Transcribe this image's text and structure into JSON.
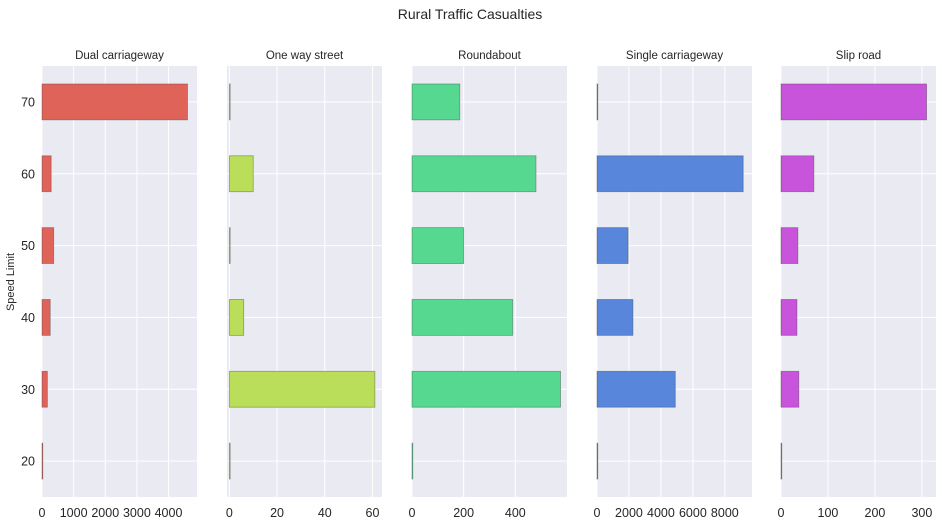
{
  "chart_data": {
    "type": "bar",
    "orientation": "horizontal",
    "title": "Rural Traffic Casualties",
    "ylabel": "Speed Limit",
    "categories": [
      "20",
      "30",
      "40",
      "50",
      "60",
      "70"
    ],
    "panels": [
      {
        "name": "Dual carriageway",
        "color": "#e0635a",
        "values": [
          8,
          170,
          260,
          370,
          290,
          4600
        ],
        "xlim": [
          0,
          4900
        ],
        "xticks": [
          0,
          1000,
          2000,
          3000,
          4000
        ],
        "xtick_labels": [
          "0",
          "1000",
          "2000",
          "3000",
          "4000"
        ]
      },
      {
        "name": "One way street",
        "color": "#bade5a",
        "values": [
          0,
          61,
          6,
          0,
          10,
          0
        ],
        "xlim": [
          -1,
          64
        ],
        "xticks": [
          0,
          20,
          40,
          60
        ],
        "xtick_labels": [
          "0",
          "20",
          "40",
          "60"
        ]
      },
      {
        "name": "Roundabout",
        "color": "#57d891",
        "values": [
          2,
          575,
          390,
          200,
          480,
          185
        ],
        "xlim": [
          0,
          600
        ],
        "xticks": [
          0,
          200,
          400
        ],
        "xtick_labels": [
          "0",
          "200",
          "400"
        ]
      },
      {
        "name": "Single carriageway",
        "color": "#5886db",
        "values": [
          20,
          4900,
          2250,
          1950,
          9150,
          10
        ],
        "xlim": [
          0,
          9700
        ],
        "xticks": [
          0,
          2000,
          4000,
          6000,
          8000
        ],
        "xtick_labels": [
          "0",
          "2000",
          "4000",
          "6000",
          "8000"
        ]
      },
      {
        "name": "Slip road",
        "color": "#c854dc",
        "values": [
          0,
          38,
          34,
          36,
          70,
          310
        ],
        "xlim": [
          0,
          330
        ],
        "xticks": [
          0,
          100,
          200,
          300
        ],
        "xtick_labels": [
          "0",
          "100",
          "200",
          "300"
        ]
      }
    ]
  }
}
